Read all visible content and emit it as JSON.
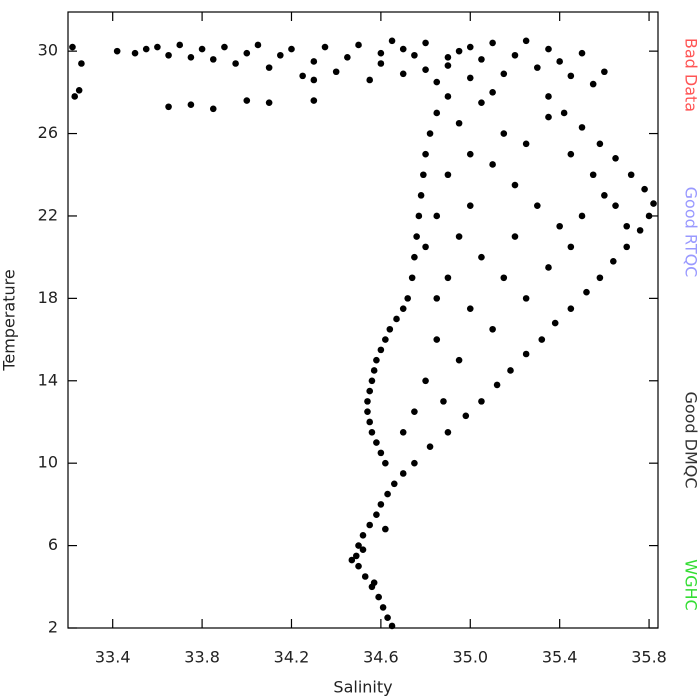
{
  "chart_data": {
    "type": "scatter",
    "x_label": "Salinity",
    "y_label": "Temperature",
    "xlim": [
      33.2,
      35.84
    ],
    "ylim": [
      2,
      31.9
    ],
    "xticks": [
      {
        "value": 33.4,
        "label": "33.4"
      },
      {
        "value": 33.8,
        "label": "33.8"
      },
      {
        "value": 34.2,
        "label": "34.2"
      },
      {
        "value": 34.6,
        "label": "34.6"
      },
      {
        "value": 35.0,
        "label": "35.0"
      },
      {
        "value": 35.4,
        "label": "35.4"
      },
      {
        "value": 35.8,
        "label": "35.8"
      }
    ],
    "yticks": [
      2,
      6,
      10,
      14,
      18,
      22,
      26,
      30
    ],
    "side_labels": [
      {
        "text": "Bad Data",
        "color": "#ff5555"
      },
      {
        "text": "Good RTQC",
        "color": "#9999ff"
      },
      {
        "text": "Good DMQC",
        "color": "#333333"
      },
      {
        "text": "WGHC",
        "color": "#33dd33"
      }
    ],
    "series": [
      {
        "color": "#000000",
        "x": [
          34.65,
          34.63,
          34.61,
          34.59,
          34.56,
          34.53,
          34.5,
          34.49,
          34.5,
          34.52,
          34.55,
          34.58,
          34.6,
          34.63,
          34.66,
          34.7,
          34.47,
          34.52,
          34.57,
          34.62,
          34.62,
          34.6,
          34.58,
          34.56,
          34.55,
          34.54,
          34.54,
          34.55,
          34.56,
          34.57,
          34.58,
          34.6,
          34.62,
          34.64,
          34.67,
          34.7,
          34.72,
          34.74,
          34.75,
          34.76,
          34.77,
          34.78,
          34.79,
          34.8,
          34.82,
          34.75,
          34.82,
          34.9,
          34.98,
          35.05,
          35.12,
          35.18,
          35.25,
          35.32,
          35.38,
          35.45,
          35.52,
          35.58,
          35.64,
          35.7,
          35.76,
          35.8,
          35.82,
          35.78,
          35.72,
          35.65,
          35.58,
          35.5,
          35.42,
          35.35,
          33.42,
          33.5,
          33.55,
          33.6,
          33.65,
          33.7,
          33.75,
          33.8,
          33.85,
          33.9,
          33.95,
          34.0,
          34.05,
          34.1,
          34.15,
          34.2,
          34.25,
          34.3,
          34.35,
          34.4,
          34.45,
          34.5,
          34.55,
          34.6,
          34.65,
          34.7,
          34.75,
          34.8,
          34.85,
          34.9,
          34.95,
          35.0,
          35.05,
          35.1,
          35.15,
          35.2,
          35.25,
          35.3,
          35.35,
          35.4,
          35.45,
          35.5,
          35.55,
          35.6,
          34.6,
          34.9,
          35.0,
          34.3,
          34.7,
          34.8,
          34.85,
          34.95,
          35.05,
          35.15,
          35.25,
          35.35,
          35.45,
          35.55,
          35.6,
          35.5,
          35.4,
          35.3,
          35.2,
          35.1,
          35.0,
          34.9,
          34.85,
          34.95,
          35.05,
          35.15,
          35.25,
          35.35,
          35.45,
          34.9,
          35.0,
          35.1,
          34.85,
          34.95,
          34.8,
          34.75,
          34.7,
          34.88,
          35.0,
          35.2,
          34.85,
          34.8,
          35.65,
          35.7,
          34.9,
          35.1,
          33.22,
          33.26,
          33.25,
          33.23,
          33.65,
          33.75,
          33.85,
          34.0,
          34.1,
          34.3
        ],
        "values": [
          2.1,
          2.5,
          3,
          3.5,
          4,
          4.5,
          5,
          5.5,
          6,
          6.5,
          7,
          7.5,
          8,
          8.5,
          9,
          9.5,
          5.3,
          5.8,
          4.2,
          6.8,
          10,
          10.5,
          11,
          11.5,
          12,
          12.5,
          13,
          13.5,
          14,
          14.5,
          15,
          15.5,
          16,
          16.5,
          17,
          17.5,
          18,
          19,
          20,
          21,
          22,
          23,
          24,
          25,
          26,
          10,
          10.8,
          11.5,
          12.3,
          13,
          13.8,
          14.5,
          15.3,
          16,
          16.8,
          17.5,
          18.3,
          19,
          19.8,
          20.5,
          21.3,
          22,
          22.6,
          23.3,
          24,
          24.8,
          25.5,
          26.3,
          27,
          27.8,
          30.0,
          29.9,
          30.1,
          30.2,
          29.8,
          30.3,
          29.7,
          30.1,
          29.6,
          30.2,
          29.4,
          29.9,
          30.3,
          29.2,
          29.8,
          30.1,
          28.8,
          29.5,
          30.2,
          29.0,
          29.7,
          30.3,
          28.6,
          29.4,
          30.5,
          28.9,
          29.8,
          30.4,
          28.5,
          29.3,
          30.0,
          28.7,
          29.6,
          30.4,
          28.9,
          29.8,
          30.5,
          29.2,
          30.1,
          29.5,
          28.8,
          29.9,
          28.4,
          29.0,
          29.9,
          29.7,
          30.2,
          28.6,
          30.1,
          29.1,
          27,
          26.5,
          27.5,
          26,
          25.5,
          26.8,
          25,
          24,
          23,
          22,
          21.5,
          22.5,
          23.5,
          24.5,
          25,
          24,
          22,
          21,
          20,
          19,
          18,
          19.5,
          20.5,
          19,
          17.5,
          16.5,
          16,
          15,
          14,
          12.5,
          11.5,
          13,
          22.5,
          21,
          18,
          20.5,
          22.5,
          21.5,
          27.8,
          28,
          30.2,
          29.4,
          28.1,
          27.8,
          27.3,
          27.4,
          27.2,
          27.6,
          27.5,
          27.6
        ]
      }
    ]
  }
}
